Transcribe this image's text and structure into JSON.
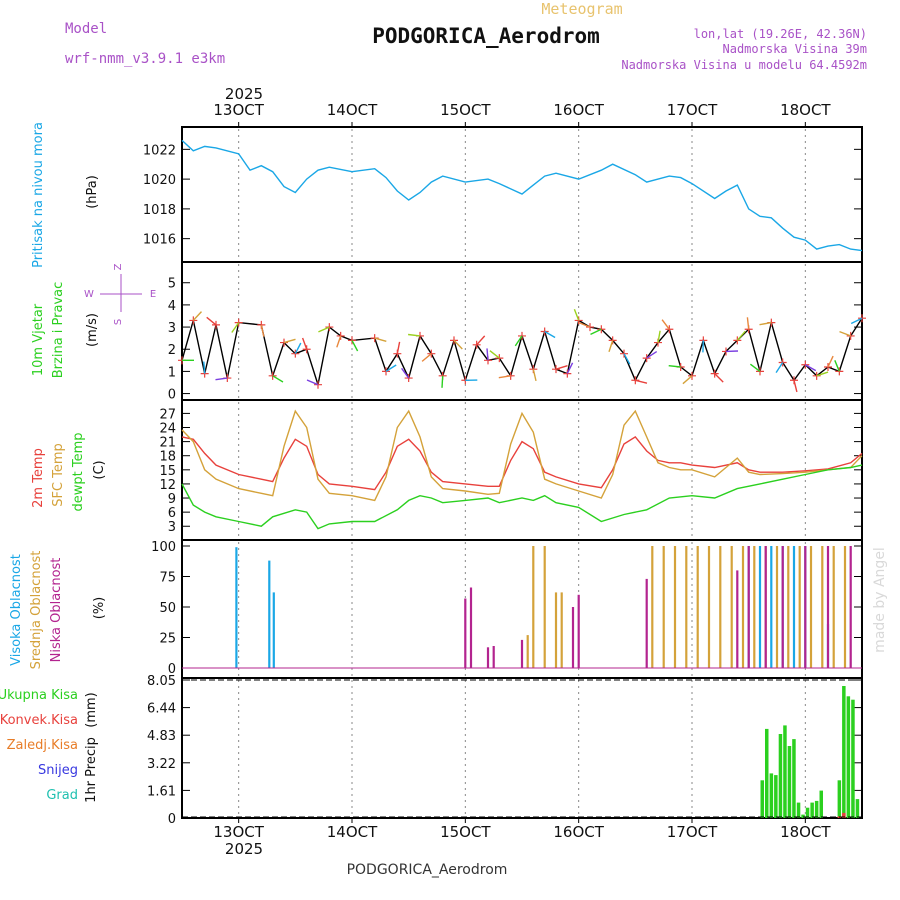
{
  "header": {
    "model_label": "Model",
    "model_value": "wrf-nmm_v3.9.1 e3km",
    "title": "PODGORICA_Aerodrom",
    "subtitle": "Meteogram",
    "lonlat": "lon,lat (19.26E, 42.36N)",
    "elevation": "Nadmorska Visina 39m",
    "model_elevation": "Nadmorska Visina u modelu 64.4592m",
    "credit": "made by Angel",
    "footer": "PODGORICA_Aerodrom"
  },
  "colors": {
    "pressure": "#1aa7e6",
    "temp2m": "#e8413c",
    "sfc": "#d4a23a",
    "dewpt": "#2bd01f",
    "high_cloud": "#1aa7e6",
    "mid_cloud": "#d4a23a",
    "low_cloud": "#b3248f",
    "total_precip": "#2bd01f",
    "conv_precip": "#e8413c",
    "frozen_precip": "#e87d28",
    "snow": "#3838e0",
    "grad": "#1fc0b0"
  },
  "chart_data": {
    "type": "meteogram",
    "time_axis": {
      "top_year": "2025",
      "bottom_year": "2025",
      "ticks": [
        "13OCT",
        "14OCT",
        "15OCT",
        "16OCT",
        "17OCT",
        "18OCT"
      ],
      "range_days": [
        12.5,
        18.5
      ]
    },
    "panels": [
      {
        "id": "pressure",
        "type": "line",
        "ylabel_title": "Pritisak na nivou mora",
        "ylabel_unit": "(hPa)",
        "ylim": [
          1014.7,
          1023.3
        ],
        "yticks": [
          "1016",
          "1018",
          "1020",
          "1022"
        ],
        "series": [
          {
            "name": "Pritisak na nivou mora",
            "t": [
              12.5,
              12.6,
              12.7,
              12.8,
              13.0,
              13.1,
              13.2,
              13.3,
              13.4,
              13.5,
              13.6,
              13.7,
              13.8,
              14.0,
              14.2,
              14.3,
              14.4,
              14.5,
              14.6,
              14.7,
              14.8,
              15.0,
              15.2,
              15.3,
              15.5,
              15.6,
              15.7,
              15.8,
              16.0,
              16.2,
              16.3,
              16.5,
              16.6,
              16.8,
              16.9,
              17.0,
              17.2,
              17.3,
              17.4,
              17.5,
              17.6,
              17.7,
              17.8,
              17.9,
              18.0,
              18.1,
              18.2,
              18.3,
              18.4,
              18.5
            ],
            "values": [
              1022.6,
              1021.9,
              1022.2,
              1022.1,
              1021.7,
              1020.6,
              1020.9,
              1020.5,
              1019.5,
              1019.1,
              1020.0,
              1020.6,
              1020.8,
              1020.5,
              1020.7,
              1020.1,
              1019.2,
              1018.6,
              1019.1,
              1019.8,
              1020.2,
              1019.8,
              1020.0,
              1019.7,
              1019.0,
              1019.6,
              1020.2,
              1020.4,
              1020.0,
              1020.6,
              1021.0,
              1020.3,
              1019.8,
              1020.2,
              1020.1,
              1019.7,
              1018.7,
              1019.2,
              1019.6,
              1018.0,
              1017.5,
              1017.4,
              1016.7,
              1016.1,
              1015.9,
              1015.3,
              1015.5,
              1015.6,
              1015.3,
              1015.2
            ]
          }
        ]
      },
      {
        "id": "wind",
        "type": "line",
        "ylabel_title": "10m Vjetar",
        "ylabel_title2": "Brzina i Pravac",
        "ylabel_unit": "(m/s)",
        "compass_labels": [
          "Z",
          "W",
          "E",
          "S"
        ],
        "ylim": [
          -0.2,
          5.8
        ],
        "yticks": [
          "0",
          "1",
          "2",
          "3",
          "4",
          "5"
        ],
        "series": [
          {
            "name": "Brzina",
            "t": [
              12.5,
              12.6,
              12.7,
              12.8,
              12.9,
              13.0,
              13.2,
              13.3,
              13.4,
              13.5,
              13.6,
              13.7,
              13.8,
              13.9,
              14.0,
              14.2,
              14.3,
              14.4,
              14.5,
              14.6,
              14.7,
              14.8,
              14.9,
              15.0,
              15.1,
              15.2,
              15.3,
              15.4,
              15.5,
              15.6,
              15.7,
              15.8,
              15.9,
              16.0,
              16.1,
              16.2,
              16.3,
              16.4,
              16.5,
              16.6,
              16.7,
              16.8,
              16.9,
              17.0,
              17.1,
              17.2,
              17.3,
              17.4,
              17.5,
              17.6,
              17.7,
              17.8,
              17.9,
              18.0,
              18.1,
              18.2,
              18.3,
              18.4,
              18.5
            ],
            "values": [
              1.5,
              3.3,
              0.9,
              3.1,
              0.7,
              3.2,
              3.1,
              0.8,
              2.3,
              1.8,
              2.0,
              0.4,
              3.0,
              2.6,
              2.4,
              2.5,
              1.0,
              1.8,
              0.7,
              2.6,
              1.8,
              0.8,
              2.4,
              0.6,
              2.2,
              1.5,
              1.6,
              0.8,
              2.6,
              1.1,
              2.8,
              1.1,
              0.9,
              3.3,
              3.0,
              2.9,
              2.4,
              1.8,
              0.6,
              1.6,
              2.3,
              2.9,
              1.2,
              0.8,
              2.4,
              0.9,
              1.9,
              2.4,
              2.9,
              1.0,
              3.2,
              1.4,
              0.6,
              1.3,
              0.8,
              1.2,
              1.0,
              2.6,
              3.4
            ]
          }
        ]
      },
      {
        "id": "temperature",
        "type": "line",
        "ylabel_title": "2m Temp",
        "ylabel_title2": "SFC Temp",
        "ylabel_title3": "dewpt Temp",
        "ylabel_unit": "(C)",
        "ylim": [
          0.5,
          29.0
        ],
        "yticks": [
          "3",
          "6",
          "9",
          "12",
          "15",
          "18",
          "21",
          "24",
          "27"
        ],
        "series": [
          {
            "name": "2m Temp",
            "t": [
              12.5,
              12.6,
              12.7,
              12.8,
              13.0,
              13.2,
              13.3,
              13.4,
              13.5,
              13.6,
              13.7,
              13.8,
              14.0,
              14.2,
              14.3,
              14.4,
              14.5,
              14.6,
              14.7,
              14.8,
              15.0,
              15.2,
              15.3,
              15.4,
              15.5,
              15.6,
              15.7,
              15.8,
              16.0,
              16.2,
              16.3,
              16.4,
              16.5,
              16.6,
              16.7,
              16.8,
              16.9,
              17.0,
              17.2,
              17.4,
              17.5,
              17.6,
              17.8,
              18.0,
              18.2,
              18.4,
              18.5
            ],
            "values": [
              22.0,
              21.5,
              18.5,
              16.0,
              14.0,
              13.0,
              12.5,
              17.5,
              21.5,
              20.0,
              14.0,
              12.0,
              11.5,
              10.8,
              14.5,
              20.0,
              21.5,
              19.0,
              14.5,
              12.5,
              12.0,
              11.5,
              11.5,
              17.0,
              21.0,
              19.5,
              14.5,
              13.5,
              12.0,
              11.2,
              15.0,
              20.5,
              22.0,
              19.0,
              17.0,
              16.5,
              16.5,
              16.0,
              15.5,
              16.5,
              15.0,
              14.5,
              14.5,
              14.8,
              15.2,
              16.5,
              18.5
            ]
          },
          {
            "name": "SFC Temp",
            "t": [
              12.5,
              12.6,
              12.7,
              12.8,
              13.0,
              13.2,
              13.3,
              13.4,
              13.5,
              13.6,
              13.7,
              13.8,
              14.0,
              14.2,
              14.3,
              14.4,
              14.5,
              14.6,
              14.7,
              14.8,
              15.0,
              15.2,
              15.3,
              15.4,
              15.5,
              15.6,
              15.7,
              15.8,
              16.0,
              16.2,
              16.3,
              16.4,
              16.5,
              16.6,
              16.7,
              16.8,
              16.9,
              17.0,
              17.2,
              17.4,
              17.5,
              17.6,
              17.8,
              18.0,
              18.2,
              18.4,
              18.5
            ],
            "values": [
              23.5,
              21.0,
              15.0,
              13.0,
              11.0,
              10.0,
              9.5,
              20.0,
              27.5,
              24.0,
              13.0,
              10.0,
              9.5,
              8.5,
              13.5,
              24.0,
              27.5,
              22.0,
              13.5,
              11.0,
              10.5,
              9.8,
              10.0,
              20.5,
              27.0,
              23.0,
              13.0,
              12.0,
              10.5,
              9.0,
              14.0,
              24.5,
              27.5,
              22.0,
              16.5,
              15.5,
              15.0,
              15.0,
              13.5,
              17.5,
              14.5,
              14.0,
              14.2,
              14.5,
              15.0,
              15.5,
              18.0
            ]
          },
          {
            "name": "dewpt Temp",
            "t": [
              12.5,
              12.6,
              12.7,
              12.8,
              13.0,
              13.2,
              13.3,
              13.5,
              13.6,
              13.7,
              13.8,
              14.0,
              14.2,
              14.4,
              14.5,
              14.6,
              14.7,
              14.8,
              15.0,
              15.2,
              15.3,
              15.5,
              15.6,
              15.7,
              15.8,
              16.0,
              16.2,
              16.4,
              16.6,
              16.8,
              17.0,
              17.2,
              17.4,
              17.6,
              17.8,
              18.0,
              18.2,
              18.4,
              18.5
            ],
            "values": [
              12.0,
              7.5,
              6.0,
              5.0,
              4.0,
              3.0,
              5.0,
              6.5,
              6.0,
              2.5,
              3.5,
              4.0,
              4.0,
              6.5,
              8.5,
              9.5,
              9.0,
              8.0,
              8.5,
              9.0,
              8.0,
              9.0,
              8.5,
              9.5,
              8.0,
              7.0,
              4.0,
              5.5,
              6.5,
              9.0,
              9.5,
              9.0,
              11.0,
              12.0,
              13.0,
              14.0,
              15.0,
              15.5,
              16.0
            ]
          }
        ]
      },
      {
        "id": "clouds",
        "type": "bar",
        "ylabel_title": "Visoka Oblacnost",
        "ylabel_title2": "Srednja Oblacnost",
        "ylabel_title3": "Niska Oblacnost",
        "ylabel_unit": "(%)",
        "ylim": [
          0,
          100
        ],
        "yticks": [
          "0",
          "25",
          "50",
          "75",
          "100"
        ],
        "series": [
          {
            "name": "Visoka Oblacnost",
            "t": [
              12.98,
              13.27,
              13.31,
              17.5,
              17.6,
              17.7,
              17.8,
              17.9,
              18.0,
              18.2
            ],
            "values": [
              99,
              88,
              62,
              100,
              100,
              100,
              100,
              100,
              100,
              36
            ]
          },
          {
            "name": "Srednja Oblacnost",
            "t": [
              15.55,
              15.6,
              15.7,
              15.8,
              15.85,
              16.65,
              16.75,
              16.85,
              16.95,
              17.05,
              17.15,
              17.25,
              17.35,
              17.45,
              17.55,
              17.65,
              17.75,
              17.85,
              17.95,
              18.05,
              18.15,
              18.25,
              18.35
            ],
            "values": [
              27,
              100,
              100,
              62,
              62,
              100,
              100,
              100,
              100,
              100,
              100,
              100,
              100,
              100,
              100,
              100,
              100,
              100,
              100,
              100,
              100,
              100,
              100
            ]
          },
          {
            "name": "Niska Oblacnost",
            "t": [
              15.0,
              15.05,
              15.2,
              15.25,
              15.5,
              15.95,
              16.0,
              16.6,
              17.4,
              17.5,
              17.65,
              17.8,
              18.0,
              18.2,
              18.4
            ],
            "values": [
              57,
              66,
              17,
              18,
              23,
              50,
              60,
              73,
              80,
              100,
              100,
              100,
              100,
              100,
              100
            ]
          }
        ]
      },
      {
        "id": "precipitation",
        "type": "bar",
        "ylabel_title": "1hr Precip",
        "ylabel_unit": "(mm)",
        "legend": [
          "Ukupna Kisa",
          "Konvek.Kisa",
          "Zaledj.Kisa",
          "Snijeg",
          "Grad"
        ],
        "ylim": [
          0,
          8.05
        ],
        "yticks": [
          "0",
          "1.61",
          "3.22",
          "4.83",
          "6.44",
          "8.05"
        ],
        "series": [
          {
            "name": "Ukupna Kisa",
            "t": [
              17.62,
              17.66,
              17.7,
              17.74,
              17.78,
              17.82,
              17.86,
              17.9,
              17.94,
              17.98,
              18.02,
              18.06,
              18.1,
              18.14,
              18.3,
              18.34,
              18.38,
              18.42,
              18.46
            ],
            "values": [
              2.2,
              5.2,
              2.6,
              2.5,
              4.9,
              5.4,
              4.2,
              4.6,
              0.9,
              0.2,
              0.6,
              0.9,
              1.0,
              1.6,
              2.2,
              7.7,
              7.1,
              6.9,
              1.1
            ]
          },
          {
            "name": "Konvek.Kisa",
            "t": [
              18.3,
              18.34
            ],
            "values": [
              0.1,
              0.3
            ]
          }
        ]
      }
    ]
  }
}
